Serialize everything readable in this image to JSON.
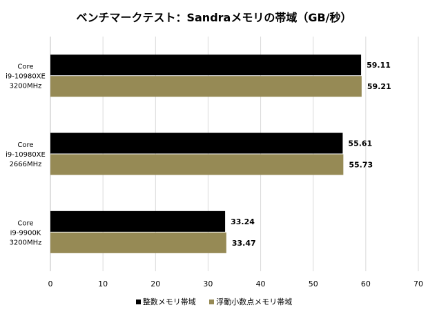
{
  "chart_data": {
    "type": "bar",
    "orientation": "horizontal",
    "title": "ベンチマークテスト：Sandraメモリの帯域（GB/秒）",
    "categories": [
      [
        "Core",
        "i9-10980XE",
        "3200MHz"
      ],
      [
        "Core",
        "i9-10980XE",
        "2666MHz"
      ],
      [
        "Core",
        "i9-9900K",
        "3200MHz"
      ]
    ],
    "series": [
      {
        "name": "整数メモリ帯域",
        "color": "#000000",
        "values": [
          59.11,
          55.61,
          33.24
        ]
      },
      {
        "name": "浮動小数点メモリ帯域",
        "color": "#968A55",
        "values": [
          59.21,
          55.73,
          33.47
        ]
      }
    ],
    "xlim": [
      0,
      70
    ],
    "xticks": [
      0,
      10,
      20,
      30,
      40,
      50,
      60,
      70
    ],
    "grid": true,
    "legend": "bottom",
    "data_labels": true
  }
}
